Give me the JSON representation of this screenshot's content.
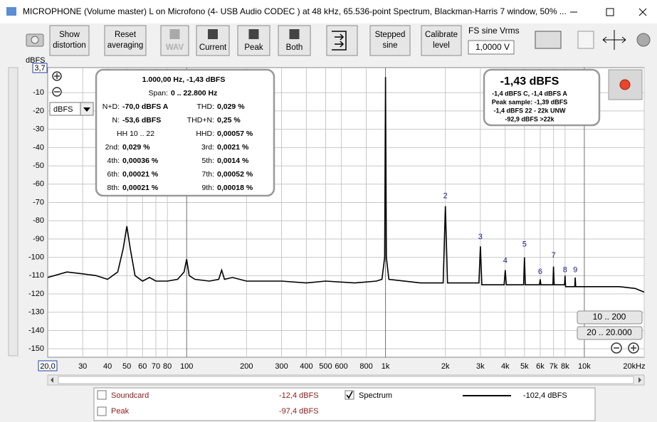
{
  "window": {
    "title": "MICROPHONE (Volume master) L on Microfono (4- USB Audio CODEC ) at 48 kHz, 65.536-point Spectrum, Blackman-Harris 7 window, 50% ..."
  },
  "toolbar": {
    "buttons": [
      {
        "lines": [
          "Show",
          "distortion"
        ]
      },
      {
        "lines": [
          "Reset",
          "averaging"
        ]
      },
      {
        "lines": [
          "WAV"
        ]
      },
      {
        "lines": [
          "Current"
        ]
      },
      {
        "lines": [
          "Peak"
        ]
      },
      {
        "lines": [
          "Both"
        ]
      },
      {
        "lines": [
          "Stepped",
          "sine"
        ]
      },
      {
        "lines": [
          "Calibrate",
          "level"
        ]
      }
    ],
    "fs_label": "FS sine Vrms",
    "fs_value": "1,0000 V"
  },
  "unit_selector": "dBFS",
  "chart_data": {
    "type": "line",
    "ylabel": "dBFS",
    "xmin_label": "20,0",
    "ymax_label": "3,7",
    "xlim": [
      20,
      20000
    ],
    "xscale": "log",
    "ylim": [
      -154.6,
      3.7
    ],
    "xticks": [
      30,
      40,
      50,
      60,
      70,
      80,
      100,
      200,
      300,
      400,
      500,
      600,
      800,
      {
        "value": 1000,
        "label": "1k"
      },
      {
        "value": 2000,
        "label": "2k"
      },
      {
        "value": 3000,
        "label": "3k"
      },
      {
        "value": 4000,
        "label": "4k"
      },
      {
        "value": 5000,
        "label": "5k"
      },
      {
        "value": 6000,
        "label": "6k"
      },
      {
        "value": 7000,
        "label": "7k"
      },
      {
        "value": 8000,
        "label": "8k"
      },
      {
        "value": 10000,
        "label": "10k"
      },
      {
        "value": 20000,
        "label": "20kHz"
      }
    ],
    "yticks": [
      -10,
      -20,
      -30,
      -40,
      -50,
      -60,
      -70,
      -80,
      -90,
      -100,
      -110,
      -120,
      -130,
      -140,
      -150
    ],
    "grid": true,
    "x": [
      20,
      25,
      30,
      35,
      40,
      45,
      48,
      50,
      52,
      55,
      60,
      65,
      70,
      80,
      90,
      97,
      100,
      103,
      110,
      130,
      145,
      150,
      155,
      170,
      200,
      250,
      300,
      400,
      500,
      700,
      900,
      960,
      990,
      1000,
      1010,
      1040,
      1500,
      1950,
      2000,
      2050,
      2950,
      3000,
      3050,
      3950,
      4000,
      4050,
      4950,
      5000,
      5050,
      5950,
      6000,
      6050,
      6950,
      7000,
      7050,
      7950,
      8000,
      8050,
      8950,
      9000,
      9050,
      12000,
      15000,
      18000,
      20000
    ],
    "series": [
      {
        "name": "Spectrum",
        "color": "#000000",
        "values": [
          -111,
          -108,
          -109,
          -110,
          -112,
          -108,
          -95,
          -83,
          -95,
          -110,
          -113,
          -111,
          -113,
          -113,
          -112,
          -108,
          -101,
          -110,
          -112,
          -113,
          -112,
          -107,
          -112,
          -111,
          -113,
          -113,
          -113,
          -114,
          -113,
          -114,
          -113,
          -112,
          -100,
          -1.43,
          -100,
          -112,
          -114,
          -114,
          -72,
          -114,
          -114,
          -94,
          -115,
          -115,
          -107,
          -115,
          -115,
          -100,
          -115,
          -115,
          -112,
          -115,
          -115,
          -105,
          -115,
          -115,
          -110,
          -116,
          -116,
          -111,
          -116,
          -116,
          -116,
          -117,
          -119
        ]
      }
    ],
    "annotations": [
      {
        "label": "2",
        "x": 2000,
        "y": -66.5
      },
      {
        "label": "3",
        "x": 3000,
        "y": -89
      },
      {
        "label": "4",
        "x": 4000,
        "y": -102
      },
      {
        "label": "5",
        "x": 5000,
        "y": -93
      },
      {
        "label": "6",
        "x": 6000,
        "y": -108
      },
      {
        "label": "7",
        "x": 7000,
        "y": -99
      },
      {
        "label": "8",
        "x": 8000,
        "y": -107
      },
      {
        "label": "9",
        "x": 9000,
        "y": -107
      }
    ]
  },
  "distortion_box": {
    "header": "1.000,00 Hz, -1,43 dBFS",
    "span_label": "Span:",
    "span": "0 .. 22.800 Hz",
    "left": [
      {
        "label": "N+D:",
        "value": "-70,0 dBFS A"
      },
      {
        "label": "N:",
        "value": "-53,6 dBFS"
      },
      {
        "text": "HH 10 .. 22"
      },
      {
        "label": "2nd:",
        "value": "0,029 %"
      },
      {
        "label": "4th:",
        "value": "0,00036 %"
      },
      {
        "label": "6th:",
        "value": "0,00021 %"
      },
      {
        "label": "8th:",
        "value": "0,00021 %"
      }
    ],
    "right": [
      {
        "label": "THD:",
        "value": "0,029 %"
      },
      {
        "label": "THD+N:",
        "value": "0,25 %"
      },
      {
        "label": "HHD:",
        "value": "0,00057 %"
      },
      {
        "label": "3rd:",
        "value": "0,0021 %"
      },
      {
        "label": "5th:",
        "value": "0,0014 %"
      },
      {
        "label": "7th:",
        "value": "0,00052 %"
      },
      {
        "label": "9th:",
        "value": "0,00018 %"
      }
    ]
  },
  "level_box": {
    "main": "-1,43 dBFS",
    "lines": [
      "-1,4 dBFS C, -1,4 dBFS A",
      "Peak sample: -1,39 dBFS",
      "-1,4 dBFS 22 - 22k UNW",
      "-92,9 dBFS >22k"
    ]
  },
  "range_buttons": [
    "10 .. 200",
    "20 .. 20.000"
  ],
  "legend": [
    {
      "name": "Soundcard",
      "value": "-12,4 dBFS"
    },
    {
      "name": "Peak",
      "value": "-97,4 dBFS"
    },
    {
      "name": "Spectrum",
      "value": "-102,4 dBFS"
    }
  ]
}
